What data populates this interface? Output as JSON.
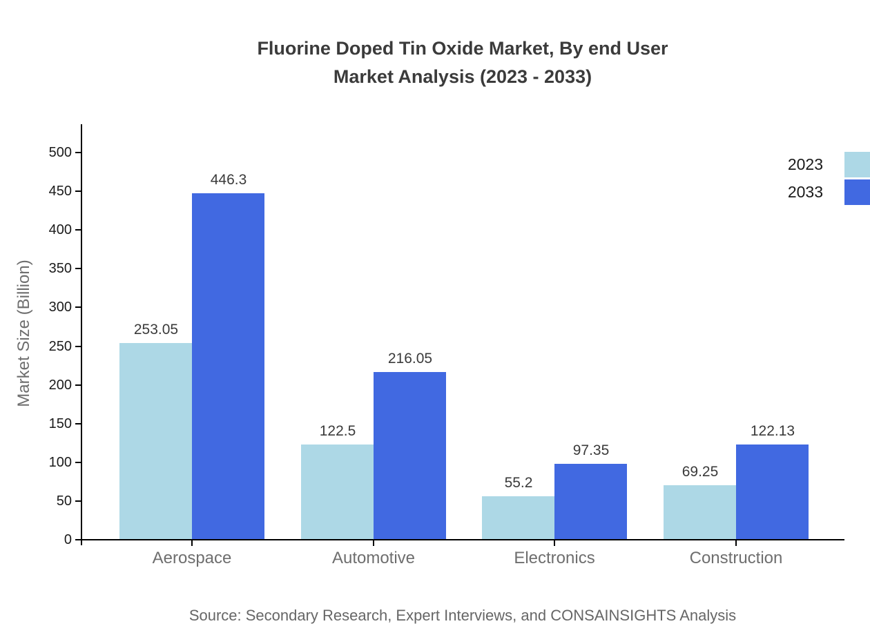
{
  "title": {
    "line1": "Fluorine Doped Tin Oxide Market, By end User",
    "line2": "Market Analysis (2023 - 2033)"
  },
  "source_note": "Source: Secondary Research, Expert Interviews, and CONSAINSIGHTS Analysis",
  "legend": {
    "items": [
      {
        "label": "2023",
        "color": "#ADD8E6"
      },
      {
        "label": "2033",
        "color": "#4169E1"
      }
    ]
  },
  "chart_data": {
    "type": "bar",
    "title": "Fluorine Doped Tin Oxide Market, By end User Market Analysis (2023 - 2033)",
    "categories": [
      "Aerospace",
      "Automotive",
      "Electronics",
      "Construction"
    ],
    "series": [
      {
        "name": "2023",
        "color": "#ADD8E6",
        "values": [
          253.05,
          122.5,
          55.2,
          69.25
        ]
      },
      {
        "name": "2033",
        "color": "#4169E1",
        "values": [
          446.3,
          216.05,
          97.35,
          122.13
        ]
      }
    ],
    "xlabel": "",
    "ylabel": "Market Size (Billion)",
    "ylim": [
      0,
      537
    ],
    "yticks": [
      0,
      50,
      100,
      150,
      200,
      250,
      300,
      350,
      400,
      450,
      500
    ],
    "grid": false,
    "bar_value_labels": true,
    "legend_position": "top-right-outside"
  }
}
